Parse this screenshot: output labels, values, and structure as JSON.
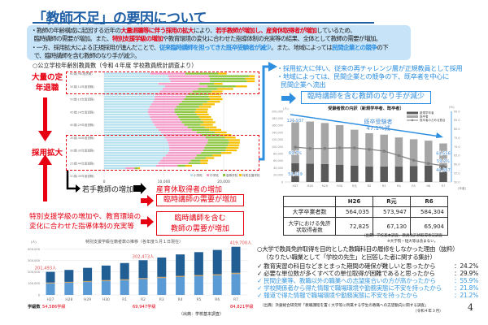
{
  "title": "「教師不足」の要因について",
  "summary": {
    "b1_a": "教師の年齢構成に起因する近年の",
    "b1_b": "大量退職等に伴う採用の拡大",
    "b1_c": "により、",
    "b1_d": "若手教師が増加し、産育休取得者が増加",
    "b1_e": "しているため、",
    "b1_f": "臨時講師の需要が増加。また、",
    "b1_g": "特別支援学級の増加",
    "b1_h": "や教育環境の変化に合わせた指導体制の充実等の結果、全体として教師の需要が増加。",
    "b2_a": "一方、採用拡大による正規採用が進んだことで、",
    "b2_b": "従来臨時講師を担ってきた既卒受験者が減少",
    "b2_c": "。また、地域によっては",
    "b2_d": "民間企業との競争",
    "b2_e": "の下",
    "b2_f": "で、臨時講師を含む教師のなり手が減少。"
  },
  "left": {
    "age_chart_heading": "○公立学校年齢別教員数（令和４年度 学校教員統計調査より）",
    "mass_retirement": "大量の定年退職",
    "hiring_expansion": "採用拡大",
    "young_increase": "若手教師の増加",
    "leave_increase": "産育休取得者の増加",
    "temp_demand": "臨時講師の需要が増加",
    "special_text_1": "特別支援学級の増加や、教育環境の",
    "special_text_2": "変化に合わせた指導体制の充実等",
    "teacher_demand_1": "臨時講師を含む",
    "teacher_demand_2": "教師の需要が増加",
    "class_count_label": "学級数",
    "class_counts": [
      "54,586学級",
      "69,947学級",
      "84,821学級"
    ],
    "source": "（出典：学校基本調査）"
  },
  "right": {
    "line1": "・採用拡大に伴い、従来の再チャレンジ層が正規教員として採用",
    "line2": "・地域によっては、民間企業との競争の下、既卒者を中心に",
    "line3": "民間企業へ流出",
    "callout": "臨時講師を含む教師のなり手が減少",
    "table": {
      "headers": [
        "",
        "H26",
        "R元",
        "R6"
      ],
      "rows": [
        {
          "label": "大学卒業者数",
          "values": [
            "564,035",
            "573,947",
            "584,304"
          ]
        },
        {
          "label": "大学における免許状取得者数",
          "values": [
            "72,825",
            "67,130",
            "65,904"
          ]
        }
      ]
    },
    "table_source": "（出典）学校基本調査、教員免許状取得状況調査",
    "table_note": "※大学院・短大等は含まない。",
    "survey_heading": "○大学で教員免許取得を目的とした教職科目の履修をしなかった理由（抜粋）",
    "survey_sub": "（なりたい職業として「学校の先生」と回答した者に関する集計）",
    "reasons": [
      {
        "text": "教育実習の科目などまとまった期間の確保が難しいと思ったから",
        "pct": "：24.2%",
        "highlight": false
      },
      {
        "text": "必要な単位数が多くすべての単位取得が困難であると思ったから",
        "pct": "：29.9%",
        "highlight": false
      },
      {
        "text": "民間企業等、教職以外の職業への志望度合いの方が高かったから",
        "pct": "：55.9%",
        "highlight": true
      },
      {
        "text": "学校関係者から得た情報で職場環境や勤務実態に不安を持ったから",
        "pct": "：21.8%",
        "highlight": true
      },
      {
        "text": "報道で得た情報で職場環境や勤務実態に不安を持ったから",
        "pct": "：21.2%",
        "highlight": true
      }
    ],
    "survey_source": "（出典）浜銀総合研究所「教職課程を置く大学等に所属する学生の教職への志望動向に関する調査」",
    "survey_date": "（令和４年３月）"
  },
  "page_number": "4",
  "colors": {
    "title": "#1f5fa6",
    "alert": "#e60012",
    "accent_blue": "#2e8fe0",
    "summary_bg": "#c6e3f8"
  },
  "chart_data": [
    {
      "type": "bar",
      "orientation": "horizontal",
      "stacked": true,
      "categories": [
        "60歳(9年度退職)",
        "59",
        "58",
        "57",
        "56",
        "55歳(14年度退職)",
        "54",
        "53",
        "52",
        "51",
        "50歳(19年度退職)",
        "49",
        "48",
        "47",
        "46",
        "45歳(24年度退職)",
        "44",
        "43",
        "42",
        "41",
        "40歳(29年度退職)",
        "39",
        "38",
        "37",
        "36",
        "35歳(34年度退職)",
        "34",
        "33",
        "32",
        "31",
        "30歳(39年度退職)",
        "29",
        "28",
        "27",
        "26",
        "25歳(44年度退職)",
        "24",
        "23",
        "22",
        "21",
        "20歳(49年度退職)"
      ],
      "tick_categories": [
        "60歳(9年度退職)",
        "55歳(14年度退職)",
        "50歳(19年度退職)",
        "45歳(24年度退職)",
        "40歳(29年度退職)",
        "35歳(34年度退職)",
        "30歳(39年度退職)",
        "25歳(44年度退職)",
        "20歳(49年度退職)"
      ],
      "xlim": [
        0,
        25000
      ],
      "xticks": [
        "0",
        "10,000",
        "20,000"
      ],
      "legend": "bottom-right",
      "series": [
        {
          "name": "小学校",
          "color": "#b5e1ee",
          "values": [
            7700,
            10700,
            10900,
            11100,
            9100,
            10200,
            9800,
            9300,
            8600,
            8500,
            8400,
            8200,
            7900,
            7600,
            7400,
            7300,
            7500,
            7700,
            7900,
            8100,
            8400,
            8700,
            9100,
            9500,
            9900,
            10200,
            10500,
            10700,
            10800,
            10900,
            10900,
            10700,
            10300,
            9800,
            9400,
            9100,
            8700,
            3600,
            100,
            0,
            0
          ]
        },
        {
          "name": "中学校",
          "color": "#f39bc9",
          "values": [
            5900,
            6800,
            6800,
            6600,
            6800,
            7100,
            5900,
            5500,
            5500,
            5200,
            5000,
            4800,
            4600,
            4500,
            4400,
            4500,
            4600,
            4700,
            4800,
            4900,
            5000,
            5300,
            5600,
            6000,
            6400,
            6800,
            6900,
            6600,
            6200,
            5900,
            5700,
            5500,
            5200,
            5400,
            5100,
            5000,
            3600,
            1500,
            50,
            0,
            0
          ]
        },
        {
          "name": "高等学校",
          "color": "#8cc63f",
          "values": [
            5500,
            6800,
            5900,
            6200,
            2500,
            4700,
            3200,
            3200,
            3400,
            3800,
            4300,
            4300,
            4000,
            3800,
            3600,
            3400,
            3400,
            3500,
            3500,
            3600,
            2700,
            2800,
            2900,
            3000,
            3100,
            3200,
            3400,
            3600,
            3700,
            3700,
            3700,
            3400,
            2600,
            1800,
            1600,
            2000,
            1300,
            600,
            0,
            0,
            0
          ]
        },
        {
          "name": "特別支援学校",
          "color": "#f5c000",
          "values": [
            1400,
            900,
            1600,
            1300,
            1400,
            1900,
            2700,
            1800,
            2000,
            2100,
            2100,
            2100,
            2000,
            2000,
            2000,
            2100,
            2000,
            2000,
            2000,
            2000,
            2100,
            2000,
            2000,
            2000,
            1900,
            1800,
            1900,
            1800,
            1900,
            2000,
            1900,
            1700,
            1500,
            1400,
            1300,
            1200,
            1100,
            300,
            0,
            0,
            0
          ]
        }
      ]
    },
    {
      "type": "bar",
      "stacked": true,
      "title": "特別支援学級在籍者数の推移（各年度５月１日現在）",
      "ylabel": "(人)",
      "categories": [
        "H27",
        "H28",
        "H29",
        "H30",
        "R1",
        "R2",
        "R3",
        "R4",
        "R5",
        "R6",
        "R7"
      ],
      "ylim": [
        0,
        400000
      ],
      "yticks": [
        "0",
        "100,000",
        "200,000",
        "300,000",
        "400,000"
      ],
      "series": [
        {
          "color": "#5b9bd5",
          "values": [
            100000,
            106000,
            113000,
            120000,
            127000,
            138000,
            148000,
            156000,
            163000,
            170000,
            183000
          ]
        },
        {
          "color": "#c9a36b",
          "values": [
            8000,
            8000,
            8000,
            9000,
            9000,
            9000,
            9000,
            10000,
            10000,
            10000,
            10000
          ]
        },
        {
          "color": "#215e93",
          "values": [
            93493,
            104000,
            115000,
            127000,
            142000,
            155473,
            169000,
            187000,
            200000,
            212000,
            226700
          ]
        }
      ],
      "data_labels": [
        {
          "category": "H27",
          "text": "201,493人"
        },
        {
          "category": "R2",
          "text": "302,473人"
        },
        {
          "category": "R7",
          "text": "419,700人"
        }
      ]
    },
    {
      "type": "bar",
      "stacked": true,
      "title": "受験者数の内訳（新規学卒者、既卒者）",
      "ylabel": "(人)",
      "y2label": "(%)",
      "xlabel": "(年度)",
      "categories": [
        "H27",
        "H28",
        "H29",
        "H30",
        "R元",
        "R2",
        "R3",
        "R4",
        "R5",
        "R6",
        "R7"
      ],
      "ylim": [
        0,
        200000
      ],
      "yticks": [
        "0",
        "20,000",
        "40,000",
        "60,000",
        "80,000",
        "100,000",
        "120,000",
        "140,000",
        "160,000",
        "180,000",
        "200,000"
      ],
      "y2lim": [
        50,
        90
      ],
      "y2ticks": [
        "50.0",
        "55.0",
        "60.0",
        "65.0",
        "70.0",
        "75.0",
        "80.0",
        "85.0",
        "90.0"
      ],
      "legend": "top-right",
      "series": [
        {
          "name": "新規学卒者",
          "color": "#595959",
          "values": [
            53039,
            52000,
            51000,
            49000,
            46000,
            44000,
            44000,
            44000,
            45000,
            46000,
            44567
          ]
        },
        {
          "name": "既卒者",
          "color": "#a6a6a6",
          "values": [
            121937,
            119000,
            116000,
            112000,
            102000,
            94000,
            90000,
            82000,
            76000,
            71000,
            64556
          ]
        },
        {
          "name": "既卒者の占める割合",
          "type": "line",
          "color": "#7f7f7f",
          "axis": "right",
          "values": [
            69.7,
            69.0,
            69.0,
            69.3,
            69.3,
            68.5,
            67.5,
            65.0,
            62.3,
            60.5,
            59.2
          ]
        }
      ],
      "data_labels": [
        "121,937",
        "53,039",
        "69.7%",
        "64,556",
        "44,567",
        "59.2%"
      ],
      "annotation": "既卒受験者 47.1%減"
    }
  ]
}
